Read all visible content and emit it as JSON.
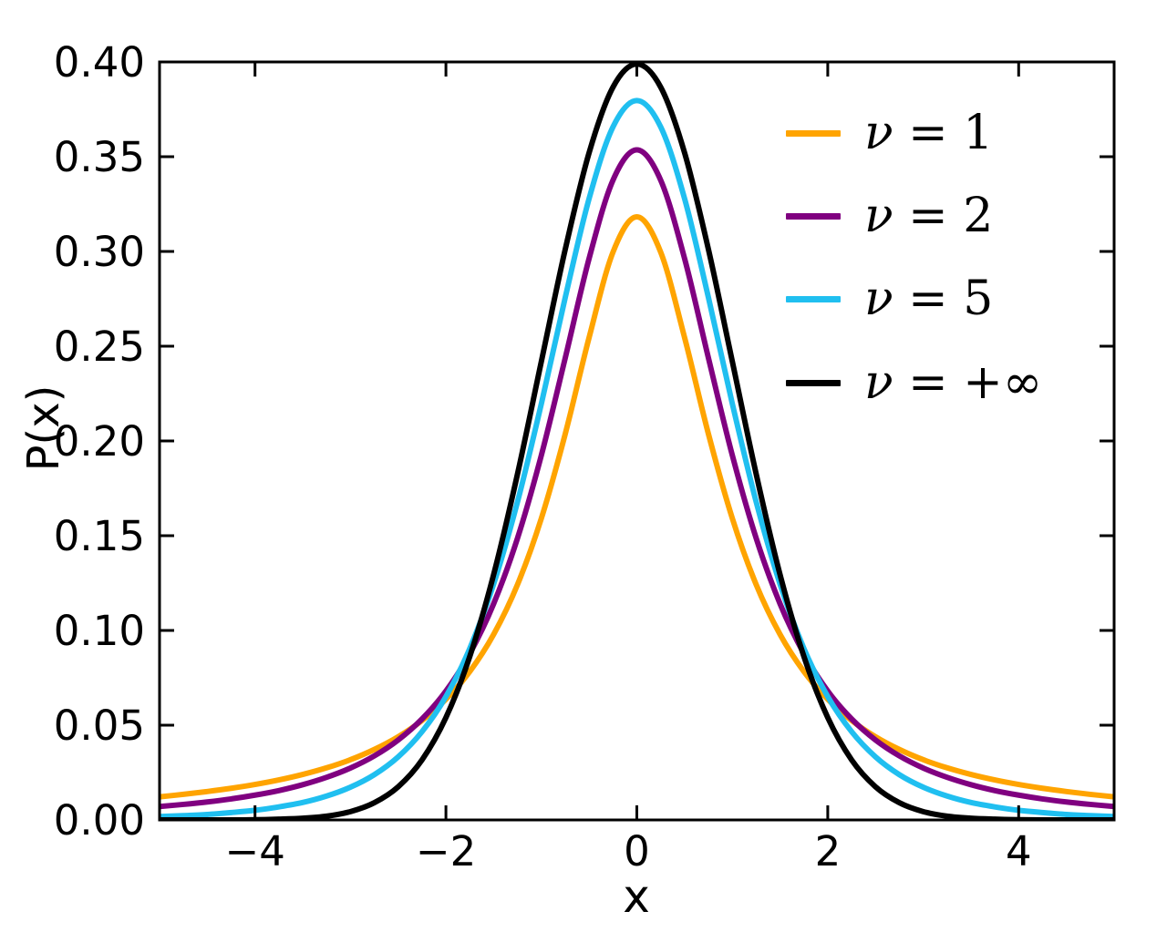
{
  "figure": {
    "background": "#ffffff",
    "axis_color": "#000000"
  },
  "chart_data": {
    "type": "line",
    "title": "",
    "xlabel": "x",
    "ylabel": "P(x)",
    "xlim": [
      -5,
      5
    ],
    "ylim": [
      0,
      0.4
    ],
    "grid": false,
    "legend_position": "upper right",
    "x_ticks": [
      -4,
      -2,
      0,
      2,
      4
    ],
    "x_tick_labels": [
      "−4",
      "−2",
      "0",
      "2",
      "4"
    ],
    "y_ticks": [
      0.0,
      0.05,
      0.1,
      0.15,
      0.2,
      0.25,
      0.3,
      0.35,
      0.4
    ],
    "y_tick_labels": [
      "0.00",
      "0.05",
      "0.10",
      "0.15",
      "0.20",
      "0.25",
      "0.30",
      "0.35",
      "0.40"
    ],
    "x": [
      -5,
      -4.75,
      -4.5,
      -4.25,
      -4,
      -3.75,
      -3.5,
      -3.25,
      -3,
      -2.75,
      -2.5,
      -2.25,
      -2,
      -1.75,
      -1.5,
      -1.25,
      -1,
      -0.75,
      -0.5,
      -0.25,
      0,
      0.25,
      0.5,
      0.75,
      1,
      1.25,
      1.5,
      1.75,
      2,
      2.25,
      2.5,
      2.75,
      3,
      3.25,
      3.5,
      3.75,
      4,
      4.25,
      4.5,
      4.75,
      5
    ],
    "series": [
      {
        "name": "ν = 1",
        "color": "#ffa400",
        "values": [
          0.0122,
          0.0135,
          0.015,
          0.0167,
          0.0187,
          0.0211,
          0.024,
          0.0275,
          0.0318,
          0.0372,
          0.0439,
          0.0525,
          0.0637,
          0.0783,
          0.0979,
          0.1242,
          0.1592,
          0.2037,
          0.2546,
          0.2996,
          0.3183,
          0.2996,
          0.2546,
          0.2037,
          0.1592,
          0.1242,
          0.0979,
          0.0783,
          0.0637,
          0.0525,
          0.0439,
          0.0372,
          0.0318,
          0.0275,
          0.024,
          0.0211,
          0.0187,
          0.0167,
          0.015,
          0.0135,
          0.0122
        ]
      },
      {
        "name": "ν = 2",
        "color": "#800080",
        "values": [
          0.0071,
          0.0082,
          0.0095,
          0.0111,
          0.0131,
          0.0155,
          0.0186,
          0.0225,
          0.0274,
          0.0338,
          0.0422,
          0.0533,
          0.068,
          0.0878,
          0.1141,
          0.1487,
          0.1925,
          0.2438,
          0.2963,
          0.3376,
          0.3536,
          0.3376,
          0.2963,
          0.2438,
          0.1925,
          0.1487,
          0.1141,
          0.0878,
          0.068,
          0.0533,
          0.0422,
          0.0338,
          0.0274,
          0.0225,
          0.0186,
          0.0155,
          0.0131,
          0.0111,
          0.0095,
          0.0082,
          0.0071
        ]
      },
      {
        "name": "ν = 5",
        "color": "#20bff0",
        "values": [
          0.0018,
          0.0023,
          0.0029,
          0.0039,
          0.0051,
          0.0069,
          0.0092,
          0.0126,
          0.0173,
          0.0239,
          0.0333,
          0.0466,
          0.0651,
          0.0905,
          0.1245,
          0.1679,
          0.2197,
          0.2757,
          0.3279,
          0.3657,
          0.3796,
          0.3657,
          0.3279,
          0.2757,
          0.2197,
          0.1679,
          0.1245,
          0.0905,
          0.0651,
          0.0466,
          0.0333,
          0.0239,
          0.0173,
          0.0126,
          0.0092,
          0.0069,
          0.0051,
          0.0039,
          0.0029,
          0.0023,
          0.0018
        ]
      },
      {
        "name": "ν = +∞",
        "color": "#000000",
        "values": [
          0.0,
          0.0,
          0.0,
          0.0,
          0.0001,
          0.0004,
          0.0009,
          0.002,
          0.0044,
          0.0091,
          0.0175,
          0.0317,
          0.054,
          0.0863,
          0.1295,
          0.1826,
          0.242,
          0.3011,
          0.3521,
          0.3867,
          0.3989,
          0.3867,
          0.3521,
          0.3011,
          0.242,
          0.1826,
          0.1295,
          0.0863,
          0.054,
          0.0317,
          0.0175,
          0.0091,
          0.0044,
          0.002,
          0.0009,
          0.0004,
          0.0001,
          0.0,
          0.0,
          0.0,
          0.0
        ]
      }
    ]
  }
}
